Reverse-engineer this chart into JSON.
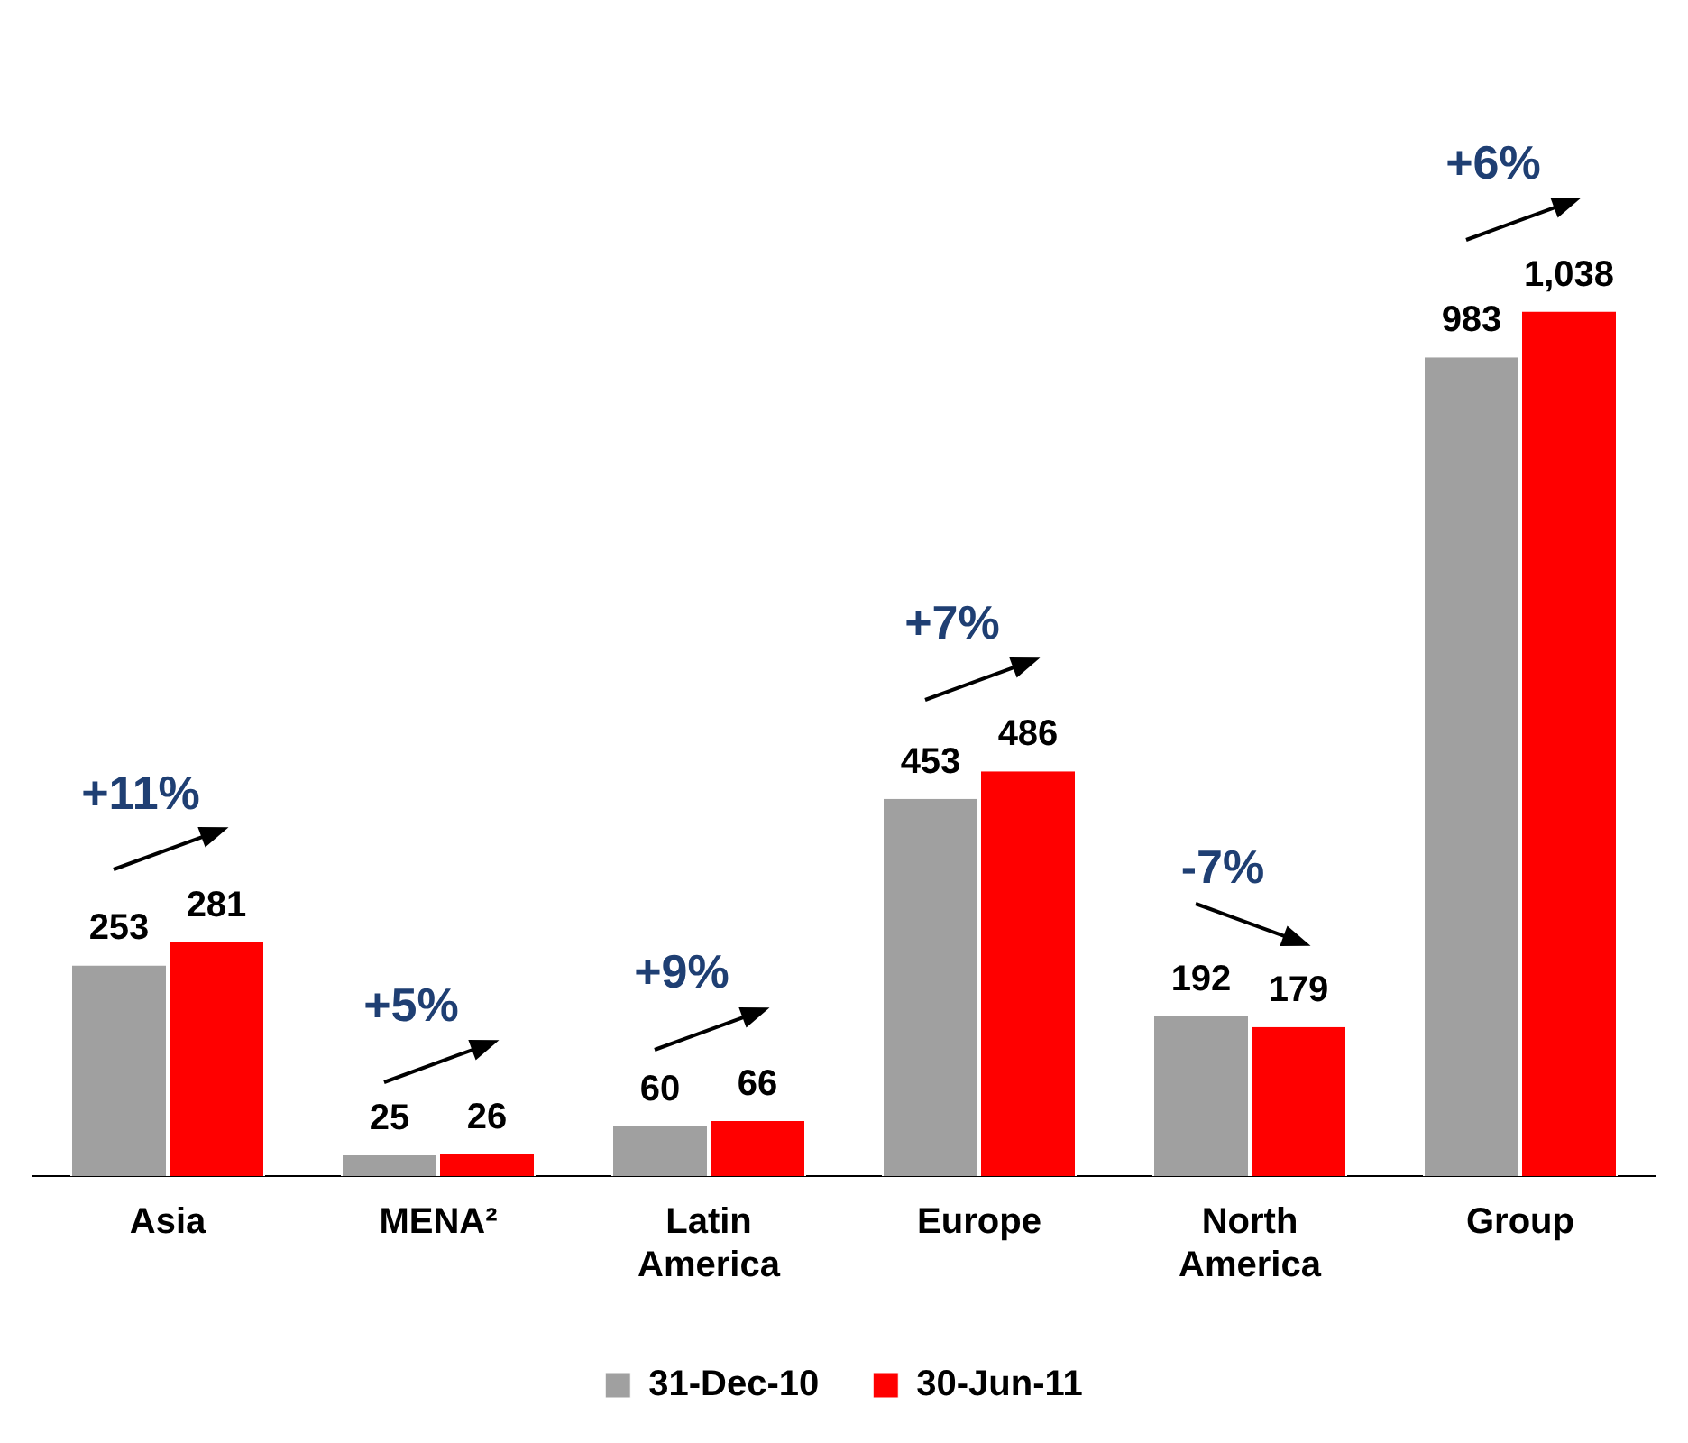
{
  "chart_data": {
    "type": "bar",
    "categories": [
      "Asia",
      "MENA²",
      "Latin America",
      "Europe",
      "North America",
      "Group"
    ],
    "series": [
      {
        "name": "31-Dec-10",
        "color": "#a0a0a0",
        "values": [
          253,
          25,
          60,
          453,
          192,
          983
        ],
        "value_labels": [
          "253",
          "25",
          "60",
          "453",
          "192",
          "983"
        ]
      },
      {
        "name": "30-Jun-11",
        "color": "#ff0000",
        "values": [
          281,
          26,
          66,
          486,
          179,
          1038
        ],
        "value_labels": [
          "281",
          "26",
          "66",
          "486",
          "179",
          "1,038"
        ]
      }
    ],
    "legend": "bottom",
    "grid": false,
    "annotations": [
      {
        "text": "+11%",
        "x": "Asia",
        "y": 281
      },
      {
        "text": "+5%",
        "x": "MENA²",
        "y": 26
      },
      {
        "text": "+9%",
        "x": "Latin America",
        "y": 66
      },
      {
        "text": "+7%",
        "x": "Europe",
        "y": 486
      },
      {
        "text": "-7%",
        "x": "North America",
        "y": 192
      },
      {
        "text": "+6%",
        "x": "Group",
        "y": 1038
      }
    ]
  }
}
